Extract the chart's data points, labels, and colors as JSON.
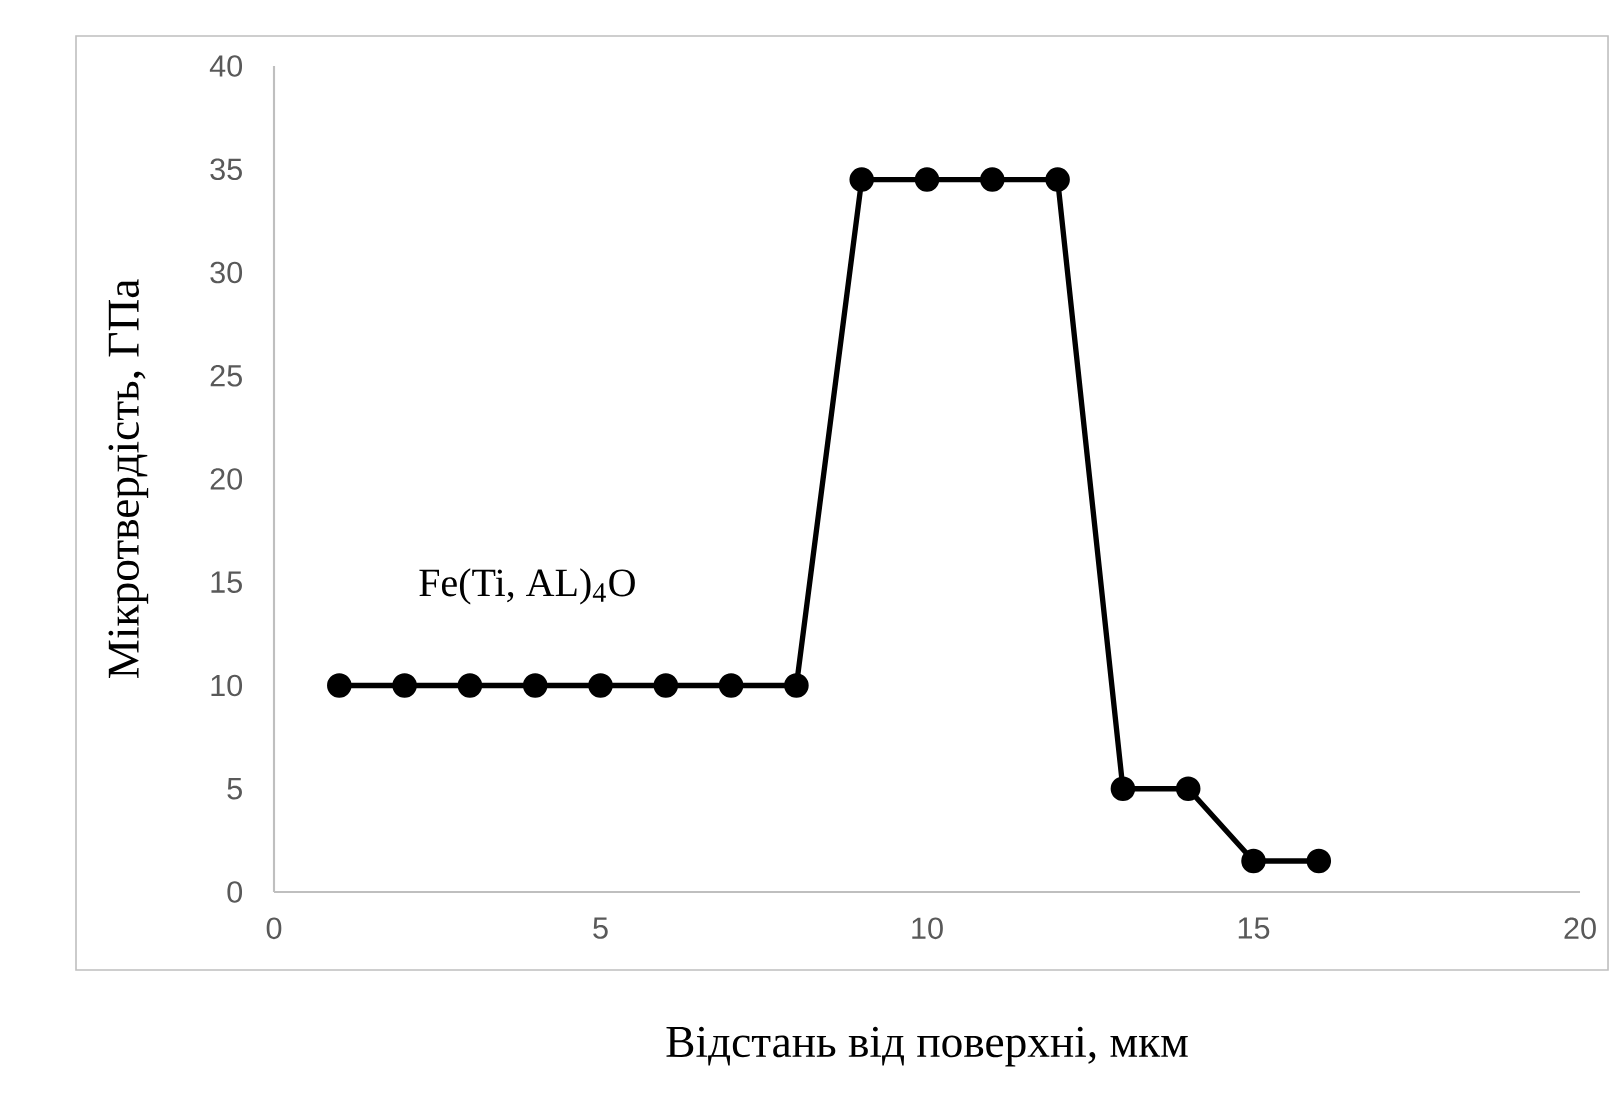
{
  "chart_data": {
    "type": "line",
    "xlabel": "Відстань від поверхні, мкм",
    "ylabel": "Мікротвердість, ГПа",
    "x": [
      1,
      2,
      3,
      4,
      5,
      6,
      7,
      8,
      9,
      10,
      11,
      12,
      13,
      14,
      15,
      16
    ],
    "series": [
      {
        "color": "#000000",
        "values": [
          10,
          10,
          10,
          10,
          10,
          10,
          10,
          10,
          34.5,
          34.5,
          34.5,
          34.5,
          5,
          5,
          1.5,
          1.5
        ]
      }
    ],
    "xlim": [
      0,
      20
    ],
    "xticks": [
      0,
      5,
      10,
      15,
      20
    ],
    "ylim": [
      0,
      40
    ],
    "yticks": [
      0,
      5,
      10,
      15,
      20,
      25,
      30,
      35,
      40
    ],
    "grid": false,
    "marker": "circle",
    "line_style": "solid",
    "annotations": [
      "Fe(Ti, AL)$_{4}$O"
    ]
  }
}
